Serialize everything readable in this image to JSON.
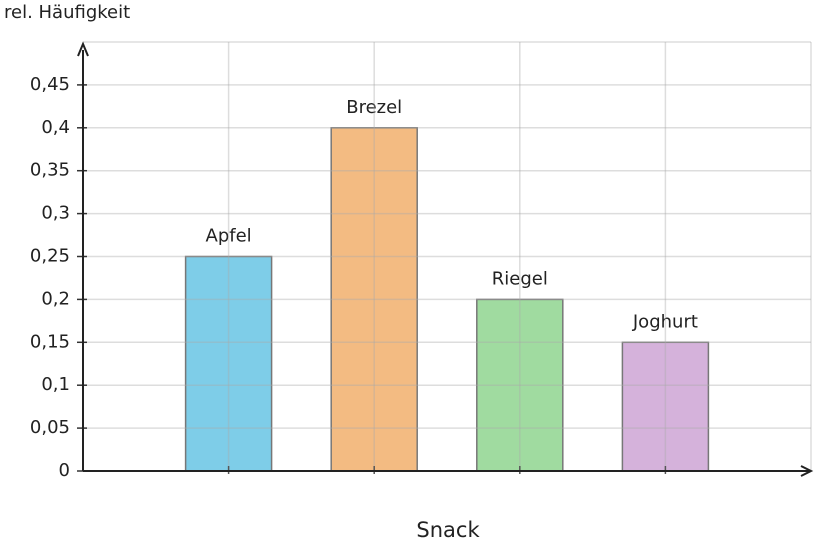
{
  "chart_data": {
    "type": "bar",
    "y_label": "rel. Häufigkeit",
    "x_label": "Snack",
    "categories": [
      "Apfel",
      "Brezel",
      "Riegel",
      "Joghurt"
    ],
    "values": [
      0.25,
      0.4,
      0.2,
      0.15
    ],
    "colors": [
      "#7ecde8",
      "#f3bb82",
      "#a0dba0",
      "#d5b2db"
    ],
    "ylim": [
      0,
      0.5
    ],
    "yticks": [
      0,
      {
        "value": 0.05,
        "label": "0,05"
      },
      {
        "value": 0.1,
        "label": "0,1"
      },
      {
        "value": 0.15,
        "label": "0,15"
      },
      {
        "value": 0.2,
        "label": "0,2"
      },
      {
        "value": 0.25,
        "label": "0,25"
      },
      {
        "value": 0.3,
        "label": "0,3"
      },
      {
        "value": 0.35,
        "label": "0,35"
      },
      {
        "value": 0.4,
        "label": "0,4"
      },
      {
        "value": 0.45,
        "label": "0,45"
      }
    ],
    "grid": true
  }
}
